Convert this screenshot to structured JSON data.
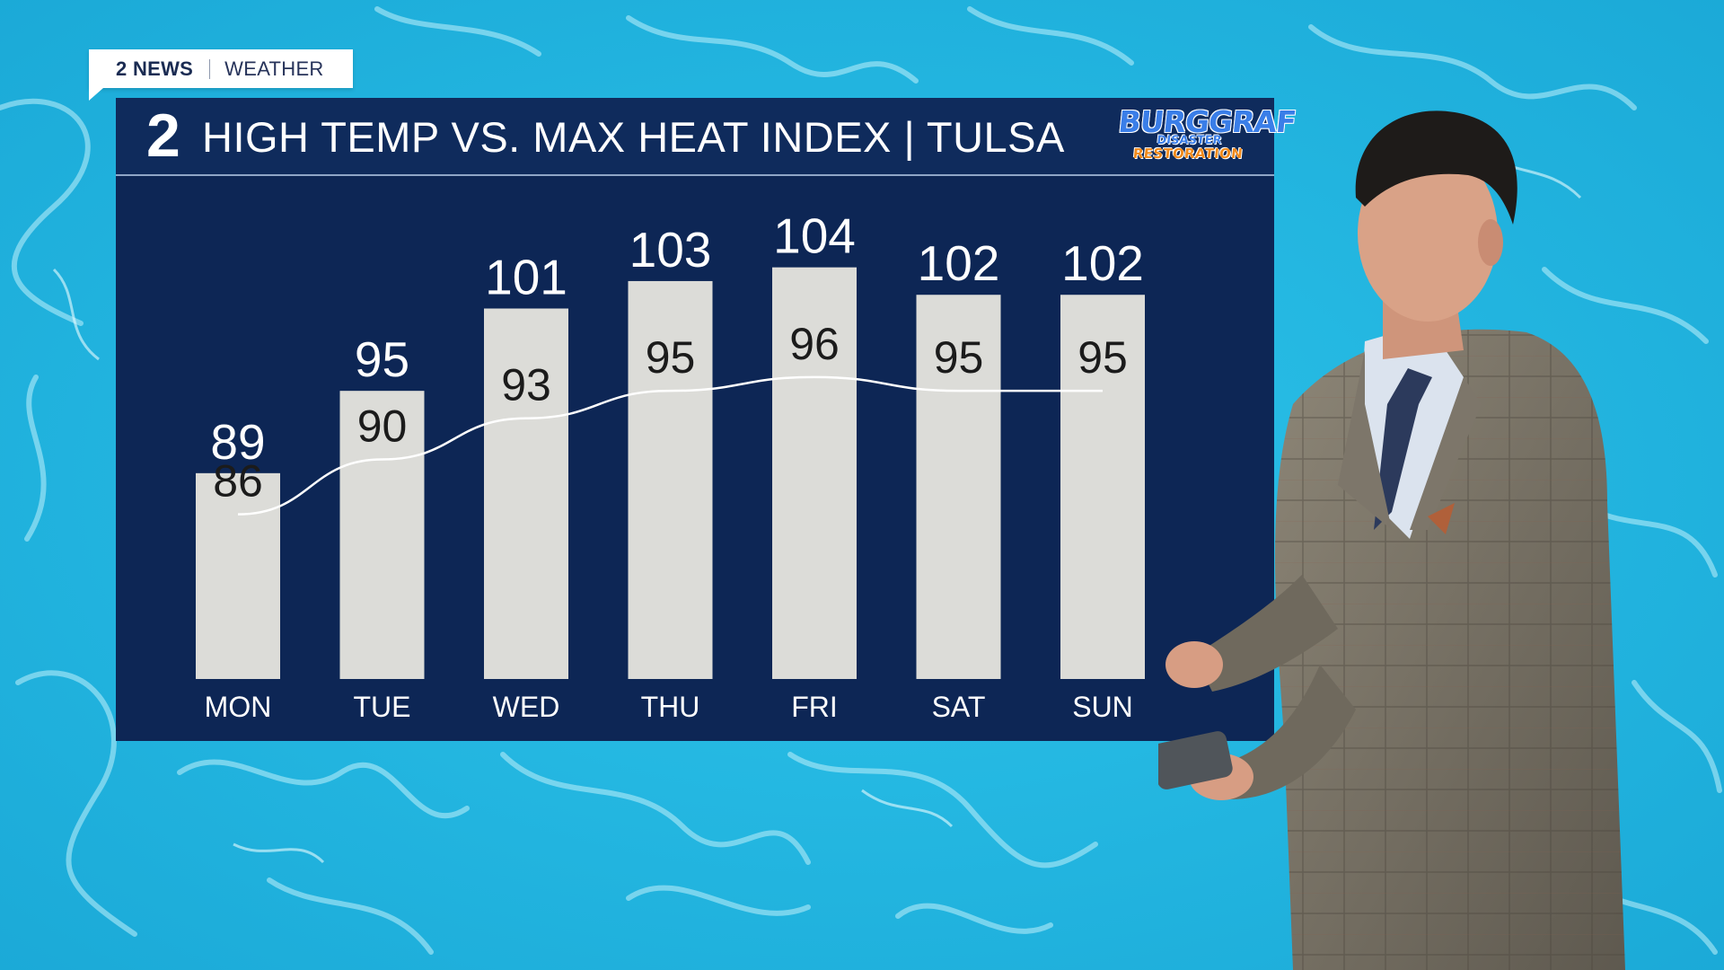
{
  "tag": {
    "station": "2 NEWS",
    "section": "WEATHER"
  },
  "header": {
    "logo": "2",
    "title": "HIGH TEMP VS. MAX HEAT INDEX | TULSA",
    "sponsor": {
      "line1": "BURGGRAF",
      "line2": "DISASTER",
      "line3": "RESTORATION"
    }
  },
  "colors": {
    "panel": "#0d2655",
    "bar": "#dcdcd8",
    "line": "#ffffff",
    "background_water": "#22b6e0"
  },
  "chart_data": {
    "type": "bar",
    "title": "HIGH TEMP VS. MAX HEAT INDEX | TULSA",
    "categories": [
      "MON",
      "TUE",
      "WED",
      "THU",
      "FRI",
      "SAT",
      "SUN"
    ],
    "series": [
      {
        "values": [
          89,
          95,
          101,
          103,
          104,
          102,
          102
        ],
        "mark": "bar"
      },
      {
        "values": [
          86,
          90,
          93,
          95,
          96,
          95,
          95
        ],
        "mark": "line"
      }
    ],
    "ylim": [
      74,
      110
    ],
    "grid": false
  }
}
